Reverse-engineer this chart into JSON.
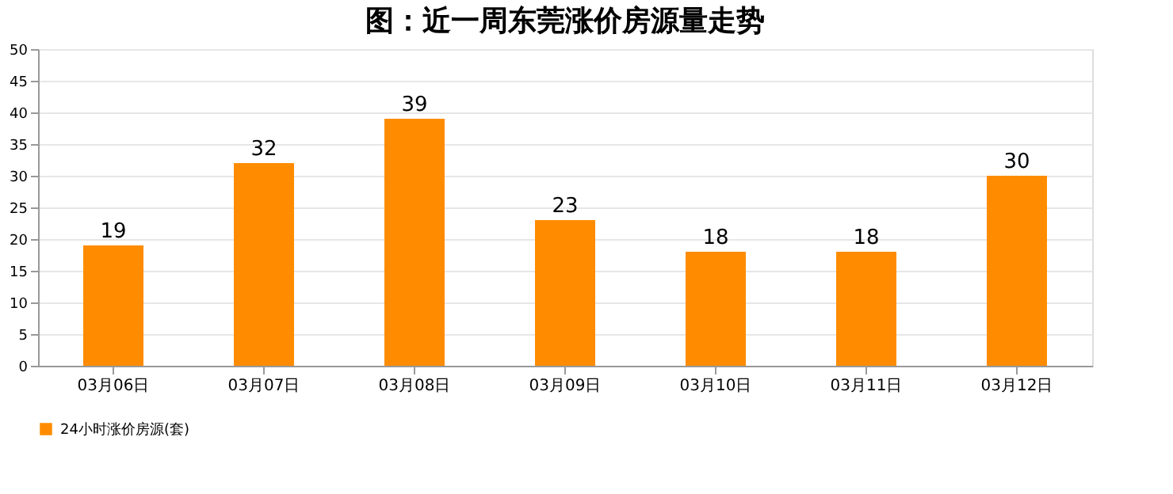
{
  "chart_data": {
    "type": "bar",
    "title": "图：近一周东莞涨价房源量走势",
    "categories": [
      "03月06日",
      "03月07日",
      "03月08日",
      "03月09日",
      "03月10日",
      "03月11日",
      "03月12日"
    ],
    "series": [
      {
        "name": "24小时涨价房源(套)",
        "color": "#ff8c00",
        "values": [
          19,
          32,
          39,
          23,
          18,
          18,
          30
        ]
      }
    ],
    "ylim": [
      0,
      50
    ],
    "yticks": [
      0,
      5,
      10,
      15,
      20,
      25,
      30,
      35,
      40,
      45,
      50
    ],
    "grid": "y",
    "legend": "bottom",
    "data_labels": true
  }
}
